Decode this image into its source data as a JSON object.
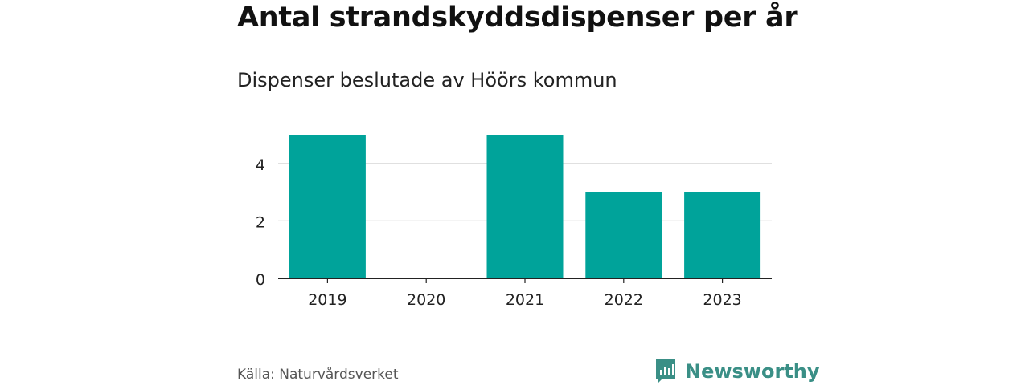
{
  "title": "Antal strandskyddsdispenser per år",
  "subtitle": "Dispenser beslutade av Höörs kommun",
  "source": "Källa: Naturvårdsverket",
  "brand": {
    "name": "Newsworthy",
    "icon": "newsworthy-logo-icon",
    "color": "#3a8f86"
  },
  "chart_data": {
    "type": "bar",
    "categories": [
      "2019",
      "2020",
      "2021",
      "2022",
      "2023"
    ],
    "values": [
      5,
      0,
      5,
      3,
      3
    ],
    "yticks": [
      0,
      2,
      4
    ],
    "ylim": [
      0,
      5
    ],
    "grid": true,
    "bar_color": "#00a39a"
  }
}
